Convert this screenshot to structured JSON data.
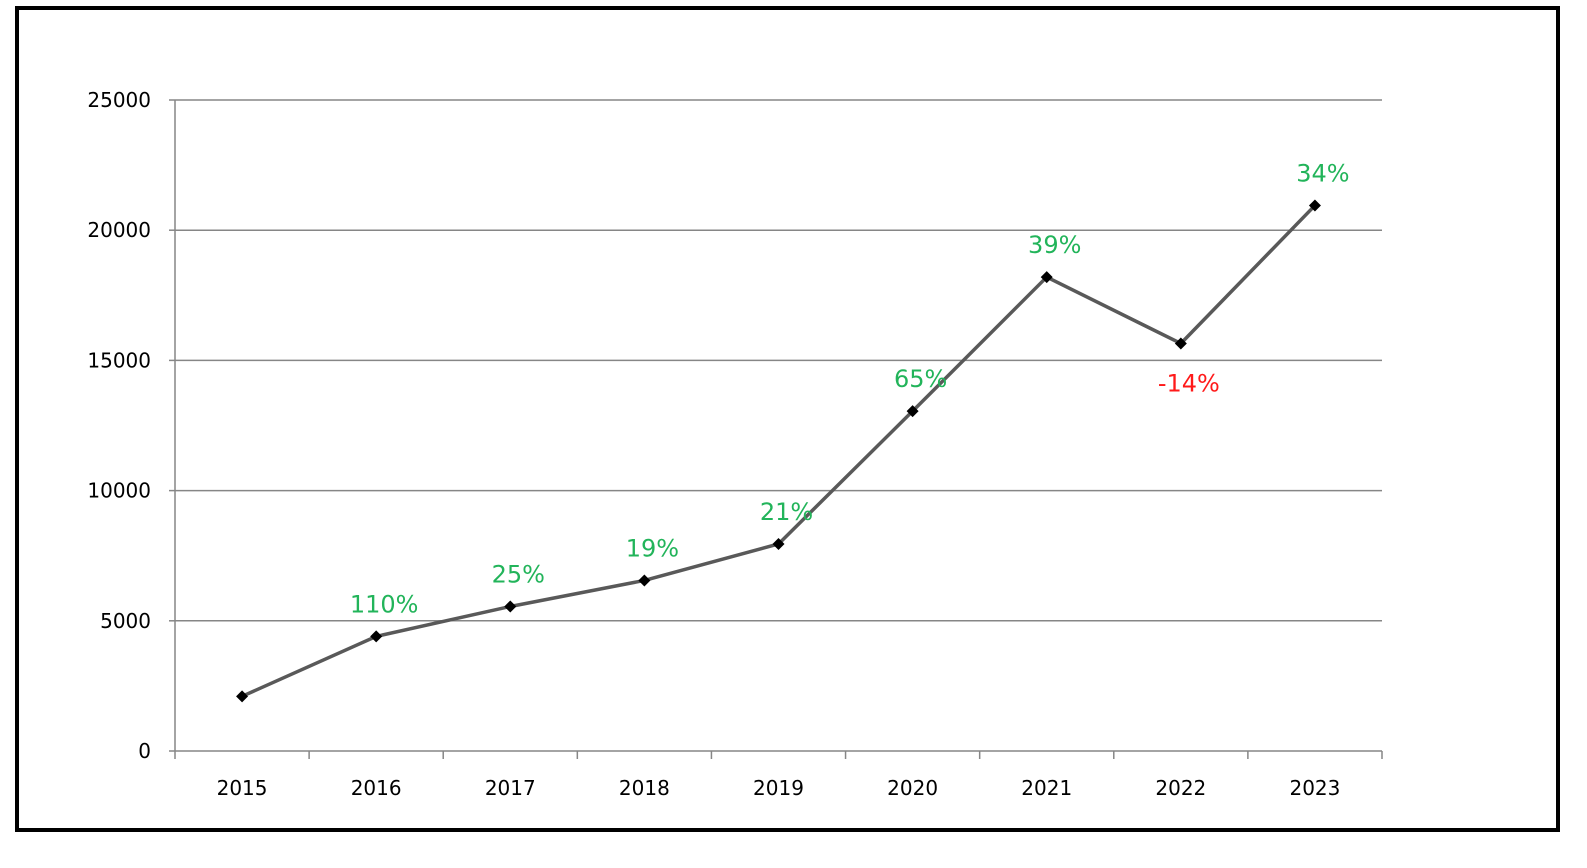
{
  "chart_data": {
    "type": "line",
    "title": "",
    "xlabel": "",
    "ylabel": "",
    "categories": [
      "2015",
      "2016",
      "2017",
      "2018",
      "2019",
      "2020",
      "2021",
      "2022",
      "2023"
    ],
    "series": [
      {
        "values": [
          2100,
          4400,
          5550,
          6550,
          7950,
          13050,
          18200,
          15650,
          20950
        ]
      }
    ],
    "data_labels": [
      "",
      "110%",
      "25%",
      "19%",
      "21%",
      "65%",
      "39%",
      "-14%",
      "34%"
    ],
    "label_placement": [
      "",
      "above",
      "above",
      "above",
      "above",
      "above",
      "above",
      "below",
      "above"
    ],
    "ylim": [
      0,
      25000
    ],
    "yticks": [
      "0",
      "5000",
      "10000",
      "15000",
      "20000",
      "25000"
    ],
    "grid": true,
    "legend": "none",
    "colors": {
      "line": "#595959",
      "marker": "#000000",
      "gridline": "#868686",
      "positive_label": "#22b45a",
      "negative_label": "#ff1a1a",
      "frame": "#000000"
    }
  }
}
